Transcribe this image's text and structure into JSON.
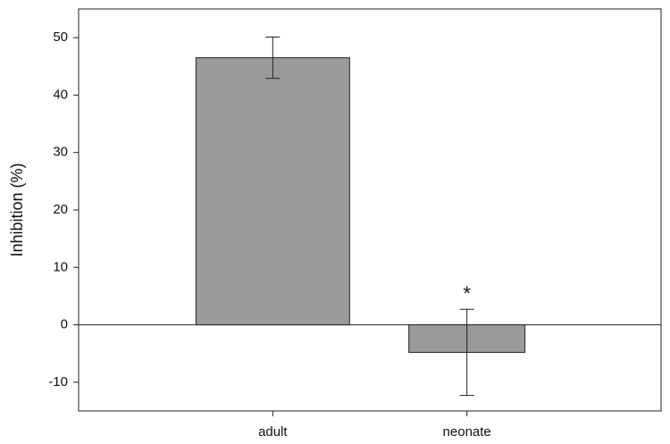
{
  "chart_data": {
    "type": "bar",
    "ylabel": "Inhibition (%)",
    "categories": [
      "adult",
      "neonate"
    ],
    "values": [
      46.5,
      -4.8
    ],
    "errors": [
      3.6,
      7.5
    ],
    "annotation": "*",
    "color": "#9a9a9a",
    "ylim": [
      -15,
      55
    ],
    "yticks": [
      -10,
      0,
      10,
      20,
      30,
      40,
      50
    ]
  }
}
